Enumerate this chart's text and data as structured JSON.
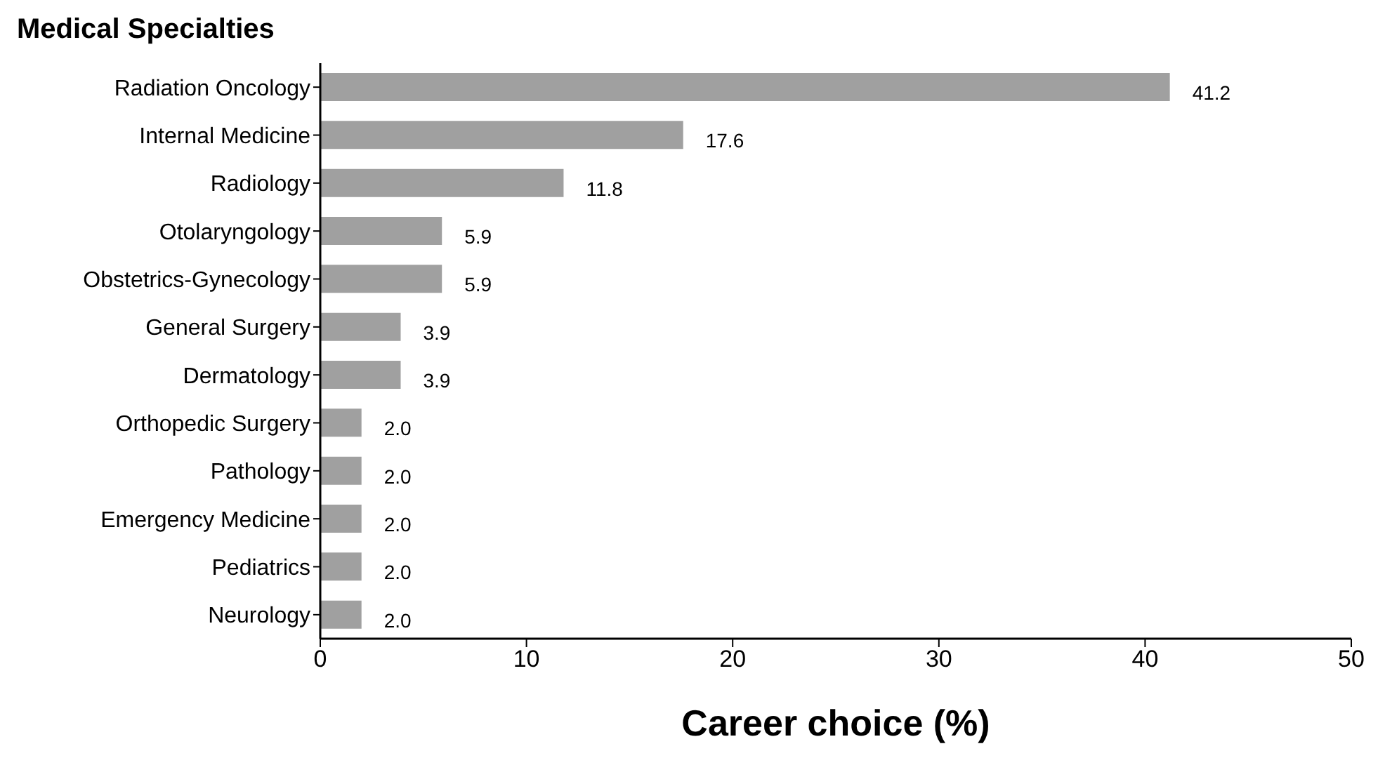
{
  "chart_data": {
    "type": "bar",
    "orientation": "horizontal",
    "ylabel": "Medical Specialties",
    "xlabel": "Career choice (%)",
    "categories": [
      "Radiation Oncology",
      "Internal Medicine",
      "Radiology",
      "Otolaryngology",
      "Obstetrics-Gynecology",
      "General Surgery",
      "Dermatology",
      "Orthopedic Surgery",
      "Pathology",
      "Emergency Medicine",
      "Pediatrics",
      "Neurology"
    ],
    "values": [
      41.2,
      17.6,
      11.8,
      5.9,
      5.9,
      3.9,
      3.9,
      2.0,
      2.0,
      2.0,
      2.0,
      2.0
    ],
    "value_labels": [
      "41.2",
      "17.6",
      "11.8",
      "5.9",
      "5.9",
      "3.9",
      "3.9",
      "2.0",
      "2.0",
      "2.0",
      "2.0",
      "2.0"
    ],
    "color": "#a0a0a0",
    "xlim": [
      0,
      50
    ],
    "xticks": [
      0,
      10,
      20,
      30,
      40,
      50
    ]
  }
}
